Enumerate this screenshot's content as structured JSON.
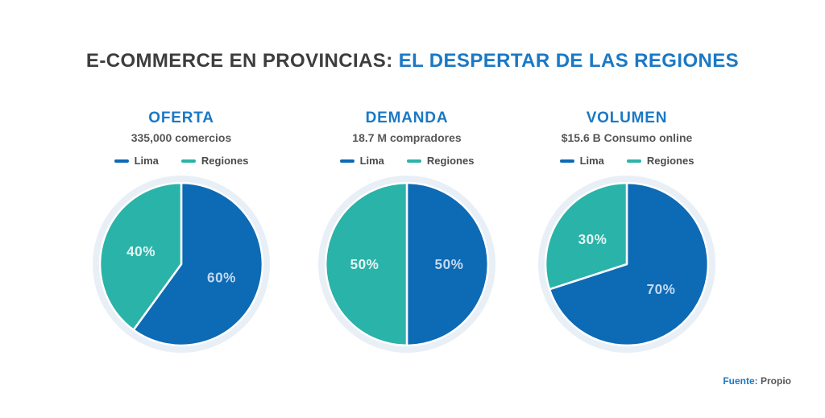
{
  "title": {
    "prefix": "E-COMMERCE EN PROVINCIAS: ",
    "highlight": "EL DESPERTAR DE LAS REGIONES"
  },
  "colors": {
    "lima": "#0d6ab5",
    "regiones": "#2ab3a8",
    "halo": "#e8eff6",
    "title_dark": "#3d3d3f",
    "accent_blue": "#1b78c4",
    "subtitle_gray": "#57575a",
    "label_on_lima": "#c3d9ef",
    "label_on_regiones": "#e3f5f2"
  },
  "footer": {
    "source_label": "Fuente:",
    "source_value": "Propio"
  },
  "chart_data": [
    {
      "type": "pie",
      "title": "OFERTA",
      "subtitle": "335,000 comercios",
      "legend_labels": [
        "Lima",
        "Regiones"
      ],
      "start_angle_deg": 0,
      "direction": "clockwise",
      "series": [
        {
          "name": "Lima",
          "value": 60,
          "label": "60%"
        },
        {
          "name": "Regiones",
          "value": 40,
          "label": "40%"
        }
      ]
    },
    {
      "type": "pie",
      "title": "DEMANDA",
      "subtitle": "18.7 M compradores",
      "legend_labels": [
        "Lima",
        "Regiones"
      ],
      "start_angle_deg": 0,
      "direction": "clockwise",
      "series": [
        {
          "name": "Lima",
          "value": 50,
          "label": "50%"
        },
        {
          "name": "Regiones",
          "value": 50,
          "label": "50%"
        }
      ]
    },
    {
      "type": "pie",
      "title": "VOLUMEN",
      "subtitle": "$15.6 B Consumo online",
      "legend_labels": [
        "Lima",
        "Regiones"
      ],
      "start_angle_deg": 0,
      "direction": "clockwise",
      "series": [
        {
          "name": "Lima",
          "value": 70,
          "label": "70%"
        },
        {
          "name": "Regiones",
          "value": 30,
          "label": "30%"
        }
      ]
    }
  ]
}
